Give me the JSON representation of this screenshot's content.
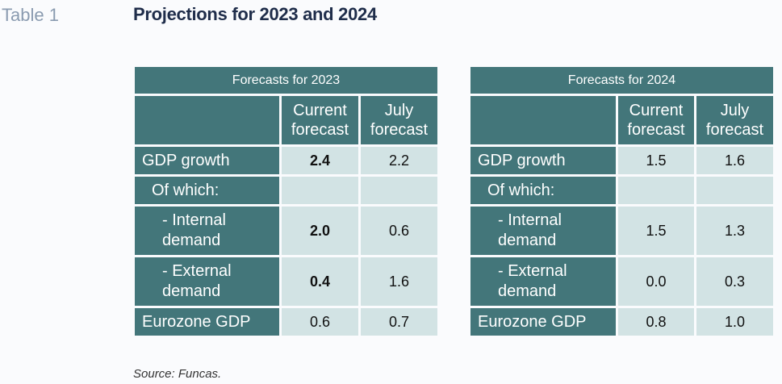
{
  "table_tag": "Table 1",
  "title": "Projections for 2023 and 2024",
  "col_current": "Current forecast",
  "col_july": "July forecast",
  "tables": [
    {
      "header": "Forecasts for 2023",
      "rows": [
        {
          "label": "GDP growth",
          "current": "2.4",
          "july": "2.2"
        },
        {
          "label": "Of which:",
          "current": "",
          "july": ""
        },
        {
          "label": "- Internal demand",
          "current": "2.0",
          "july": "0.6"
        },
        {
          "label": "- External demand",
          "current": "0.4",
          "july": "1.6"
        },
        {
          "label": "Eurozone GDP",
          "current": "0.6",
          "july": "0.7"
        }
      ]
    },
    {
      "header": "Forecasts for 2024",
      "rows": [
        {
          "label": "GDP growth",
          "current": "1.5",
          "july": "1.6"
        },
        {
          "label": "Of which:",
          "current": "",
          "july": ""
        },
        {
          "label": "- Internal demand",
          "current": "1.5",
          "july": "1.3"
        },
        {
          "label": "- External demand",
          "current": "0.0",
          "july": "0.3"
        },
        {
          "label": "Eurozone GDP",
          "current": "0.8",
          "july": "1.0"
        }
      ]
    }
  ],
  "source": "Source: Funcas."
}
